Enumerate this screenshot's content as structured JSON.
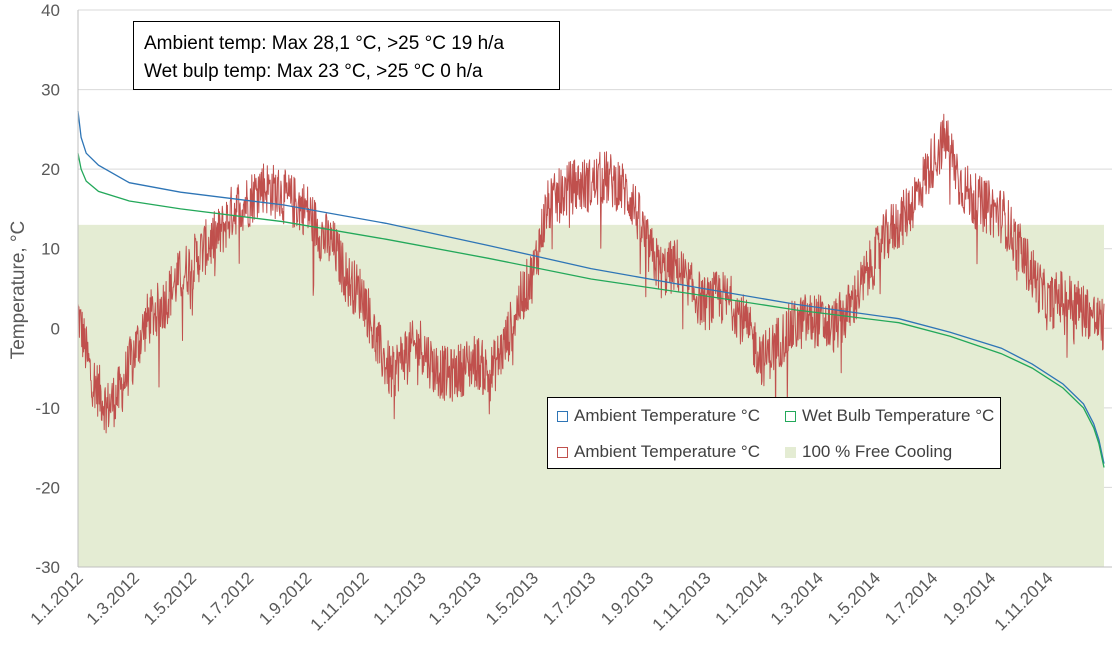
{
  "annotation": {
    "line1": "Ambient temp: Max 28,1 °C, >25 °C 19 h/a",
    "line2": "Wet bulp temp: Max 23 °C, >25 °C 0 h/a"
  },
  "legend": [
    {
      "label": "Ambient Temperature °C",
      "color": "#2e75b6",
      "kind": "line"
    },
    {
      "label": "Wet Bulb Temperature °C",
      "color": "#23a85a",
      "kind": "line"
    },
    {
      "label": "Ambient Temperature °C",
      "color": "#c0504d",
      "kind": "line"
    },
    {
      "label": "100 % Free Cooling",
      "color": "#e4ecd3",
      "kind": "area"
    }
  ],
  "chart_data": {
    "type": "line",
    "title": "",
    "ylabel": "Temperature, °C",
    "xlabel": "",
    "ylim": [
      -30,
      40
    ],
    "yticks": [
      -30,
      -20,
      -10,
      0,
      10,
      20,
      30,
      40
    ],
    "grid": true,
    "legend_position": "bottom-right",
    "x_ticks": [
      "1.1.2012",
      "1.3.2012",
      "1.5.2012",
      "1.7.2012",
      "1.9.2012",
      "1.11.2012",
      "1.1.2013",
      "1.3.2013",
      "1.5.2013",
      "1.7.2013",
      "1.9.2013",
      "1.11.2013",
      "1.1.2014",
      "1.3.2014",
      "1.5.2014",
      "1.7.2014",
      "1.9.2014",
      "1.11.2014"
    ],
    "free_cooling_limit": 13,
    "sorted_series": [
      {
        "name": "Ambient Temperature °C",
        "color": "#2e75b6",
        "x_fraction": [
          0,
          0.003,
          0.008,
          0.02,
          0.05,
          0.1,
          0.2,
          0.3,
          0.4,
          0.5,
          0.6,
          0.7,
          0.8,
          0.85,
          0.9,
          0.93,
          0.96,
          0.98,
          0.99,
          0.995,
          1.0
        ],
        "values": [
          27.3,
          24,
          22,
          20.5,
          18.3,
          17.1,
          15.5,
          13.2,
          10.4,
          7.5,
          5.2,
          3,
          1.2,
          -0.5,
          -2.5,
          -4.5,
          -7,
          -9.5,
          -12,
          -14,
          -17
        ]
      },
      {
        "name": "Wet Bulb Temperature °C",
        "color": "#23a85a",
        "x_fraction": [
          0,
          0.003,
          0.008,
          0.02,
          0.05,
          0.1,
          0.2,
          0.3,
          0.4,
          0.5,
          0.6,
          0.7,
          0.8,
          0.85,
          0.9,
          0.93,
          0.96,
          0.98,
          0.99,
          0.995,
          1.0
        ],
        "values": [
          22,
          20,
          18.5,
          17.2,
          16,
          15,
          13.4,
          11.2,
          8.8,
          6.2,
          4.3,
          2.3,
          0.7,
          -1,
          -3.2,
          -5,
          -7.5,
          -10,
          -12.5,
          -14.5,
          -17.5
        ]
      }
    ],
    "daily_series": {
      "name": "Ambient Temperature °C",
      "color": "#c0504d",
      "x": [
        "1.1.2012",
        "15.1.2012",
        "1.2.2012",
        "15.2.2012",
        "1.3.2012",
        "15.3.2012",
        "1.4.2012",
        "15.4.2012",
        "1.5.2012",
        "15.5.2012",
        "1.6.2012",
        "15.6.2012",
        "1.7.2012",
        "15.7.2012",
        "1.8.2012",
        "15.8.2012",
        "1.9.2012",
        "15.9.2012",
        "1.10.2012",
        "15.10.2012",
        "1.11.2012",
        "15.11.2012",
        "1.12.2012",
        "15.12.2012",
        "1.1.2013",
        "15.1.2013",
        "1.2.2013",
        "15.2.2013",
        "1.3.2013",
        "15.3.2013",
        "1.4.2013",
        "15.4.2013",
        "1.5.2013",
        "15.5.2013",
        "1.6.2013",
        "15.6.2013",
        "1.7.2013",
        "15.7.2013",
        "1.8.2013",
        "15.8.2013",
        "1.9.2013",
        "15.9.2013",
        "1.10.2013",
        "15.10.2013",
        "1.11.2013",
        "15.11.2013",
        "1.12.2013",
        "15.12.2013",
        "1.1.2014",
        "15.1.2014",
        "1.2.2014",
        "15.2.2014",
        "1.3.2014",
        "15.3.2014",
        "1.4.2014",
        "15.4.2014",
        "1.5.2014",
        "15.5.2014",
        "1.6.2014",
        "15.6.2014",
        "1.7.2014",
        "15.7.2014",
        "1.8.2014",
        "15.8.2014",
        "1.9.2014",
        "15.9.2014",
        "1.10.2014",
        "15.10.2014",
        "1.11.2014",
        "15.11.2014",
        "1.12.2014",
        "15.12.2014",
        "31.12.2014"
      ],
      "values": [
        2,
        -6,
        -10,
        -8,
        -3,
        1,
        3,
        6,
        8,
        10,
        12,
        15,
        16,
        18,
        17,
        16,
        15,
        12,
        10,
        6,
        4,
        -2,
        -6,
        -3,
        -2,
        -5,
        -6,
        -5,
        -4,
        -6,
        -2,
        3,
        7,
        15,
        17,
        18,
        18,
        19,
        18,
        16,
        10,
        7,
        8,
        5,
        3,
        4,
        3,
        0,
        -4,
        -2,
        0,
        1,
        1,
        0,
        2,
        5,
        9,
        12,
        14,
        17,
        21,
        24,
        18,
        16,
        15,
        14,
        10,
        7,
        3,
        4,
        3,
        2,
        0
      ]
    }
  }
}
